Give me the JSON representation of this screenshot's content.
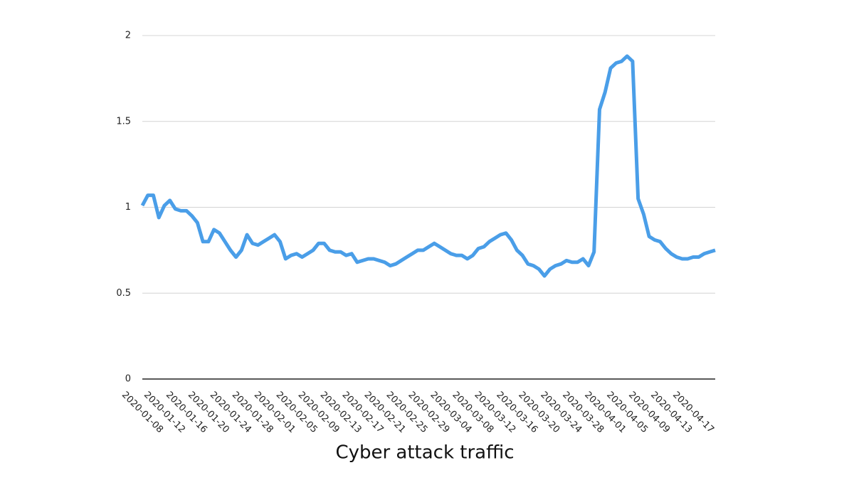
{
  "chart_data": {
    "type": "line",
    "title": "Cyber attack traffic",
    "categories": [
      "2020-01-08",
      null,
      null,
      null,
      "2020-01-12",
      null,
      null,
      null,
      "2020-01-16",
      null,
      null,
      null,
      "2020-01-20",
      null,
      null,
      null,
      "2020-01-24",
      null,
      null,
      null,
      "2020-01-28",
      null,
      null,
      null,
      "2020-02-01",
      null,
      null,
      null,
      "2020-02-05",
      null,
      null,
      null,
      "2020-02-09",
      null,
      null,
      null,
      "2020-02-13",
      null,
      null,
      null,
      "2020-02-17",
      null,
      null,
      null,
      "2020-02-21",
      null,
      null,
      null,
      "2020-02-25",
      null,
      null,
      null,
      "2020-02-29",
      null,
      null,
      null,
      "2020-03-04",
      null,
      null,
      null,
      "2020-03-08",
      null,
      null,
      null,
      "2020-03-12",
      null,
      null,
      null,
      "2020-03-16",
      null,
      null,
      null,
      "2020-03-20",
      null,
      null,
      null,
      "2020-03-24",
      null,
      null,
      null,
      "2020-03-28",
      null,
      null,
      null,
      "2020-04-01",
      null,
      null,
      null,
      "2020-04-05",
      null,
      null,
      null,
      "2020-04-09",
      null,
      null,
      null,
      "2020-04-13",
      null,
      null,
      null,
      "2020-04-17",
      null,
      null,
      null,
      null
    ],
    "series": [
      {
        "name": "Cyber attack traffic",
        "color": "#4a9ee8",
        "values": [
          1.01,
          1.07,
          1.07,
          0.94,
          1.01,
          1.04,
          0.99,
          0.98,
          0.98,
          0.95,
          0.91,
          0.8,
          0.8,
          0.87,
          0.85,
          0.8,
          0.75,
          0.71,
          0.75,
          0.84,
          0.79,
          0.78,
          0.8,
          0.82,
          0.84,
          0.8,
          0.7,
          0.72,
          0.73,
          0.71,
          0.73,
          0.75,
          0.79,
          0.79,
          0.75,
          0.74,
          0.74,
          0.72,
          0.73,
          0.68,
          0.69,
          0.7,
          0.7,
          0.69,
          0.68,
          0.66,
          0.67,
          0.69,
          0.71,
          0.73,
          0.75,
          0.75,
          0.77,
          0.79,
          0.77,
          0.75,
          0.73,
          0.72,
          0.72,
          0.7,
          0.72,
          0.76,
          0.77,
          0.8,
          0.82,
          0.84,
          0.85,
          0.81,
          0.75,
          0.72,
          0.67,
          0.66,
          0.64,
          0.6,
          0.64,
          0.66,
          0.67,
          0.69,
          0.68,
          0.68,
          0.7,
          0.66,
          0.74,
          1.57,
          1.67,
          1.81,
          1.84,
          1.85,
          1.88,
          1.85,
          1.05,
          0.96,
          0.83,
          0.81,
          0.8,
          0.76,
          0.73,
          0.71,
          0.7,
          0.7,
          0.71,
          0.71,
          0.73,
          0.74,
          0.75
        ]
      }
    ],
    "ylim": [
      0,
      2
    ],
    "yticks": [
      0,
      0.5,
      1,
      1.5,
      2
    ],
    "grid": true
  }
}
